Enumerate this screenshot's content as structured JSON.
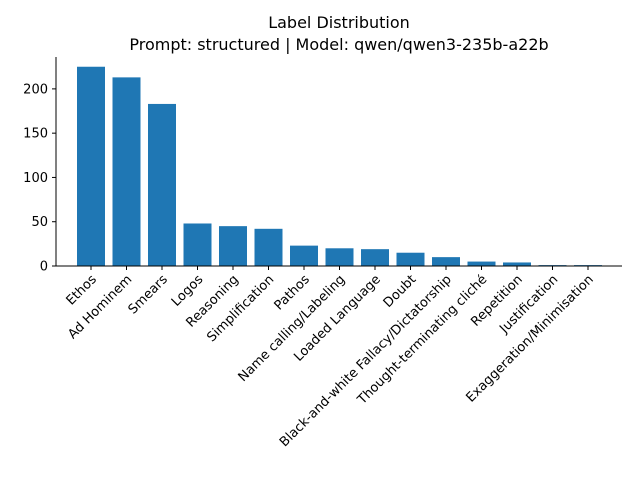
{
  "chart_data": {
    "type": "bar",
    "title": "Label Distribution",
    "subtitle": "Prompt: structured | Model: qwen/qwen3-235b-a22b",
    "xlabel": "",
    "ylabel": "",
    "categories": [
      "Ethos",
      "Ad Hominem",
      "Smears",
      "Logos",
      "Reasoning",
      "Simplification",
      "Pathos",
      "Name calling/Labeling",
      "Loaded Language",
      "Doubt",
      "Black-and-white Fallacy/Dictatorship",
      "Thought-terminating cliché",
      "Repetition",
      "Justification",
      "Exaggeration/Minimisation"
    ],
    "values": [
      225,
      213,
      183,
      48,
      45,
      42,
      23,
      20,
      19,
      15,
      10,
      5,
      4,
      1,
      1
    ],
    "ylim": [
      0,
      236
    ],
    "yticks": [
      0,
      50,
      100,
      150,
      200
    ],
    "grid": false,
    "legend": "none",
    "bar_color": "#1f77b4"
  }
}
